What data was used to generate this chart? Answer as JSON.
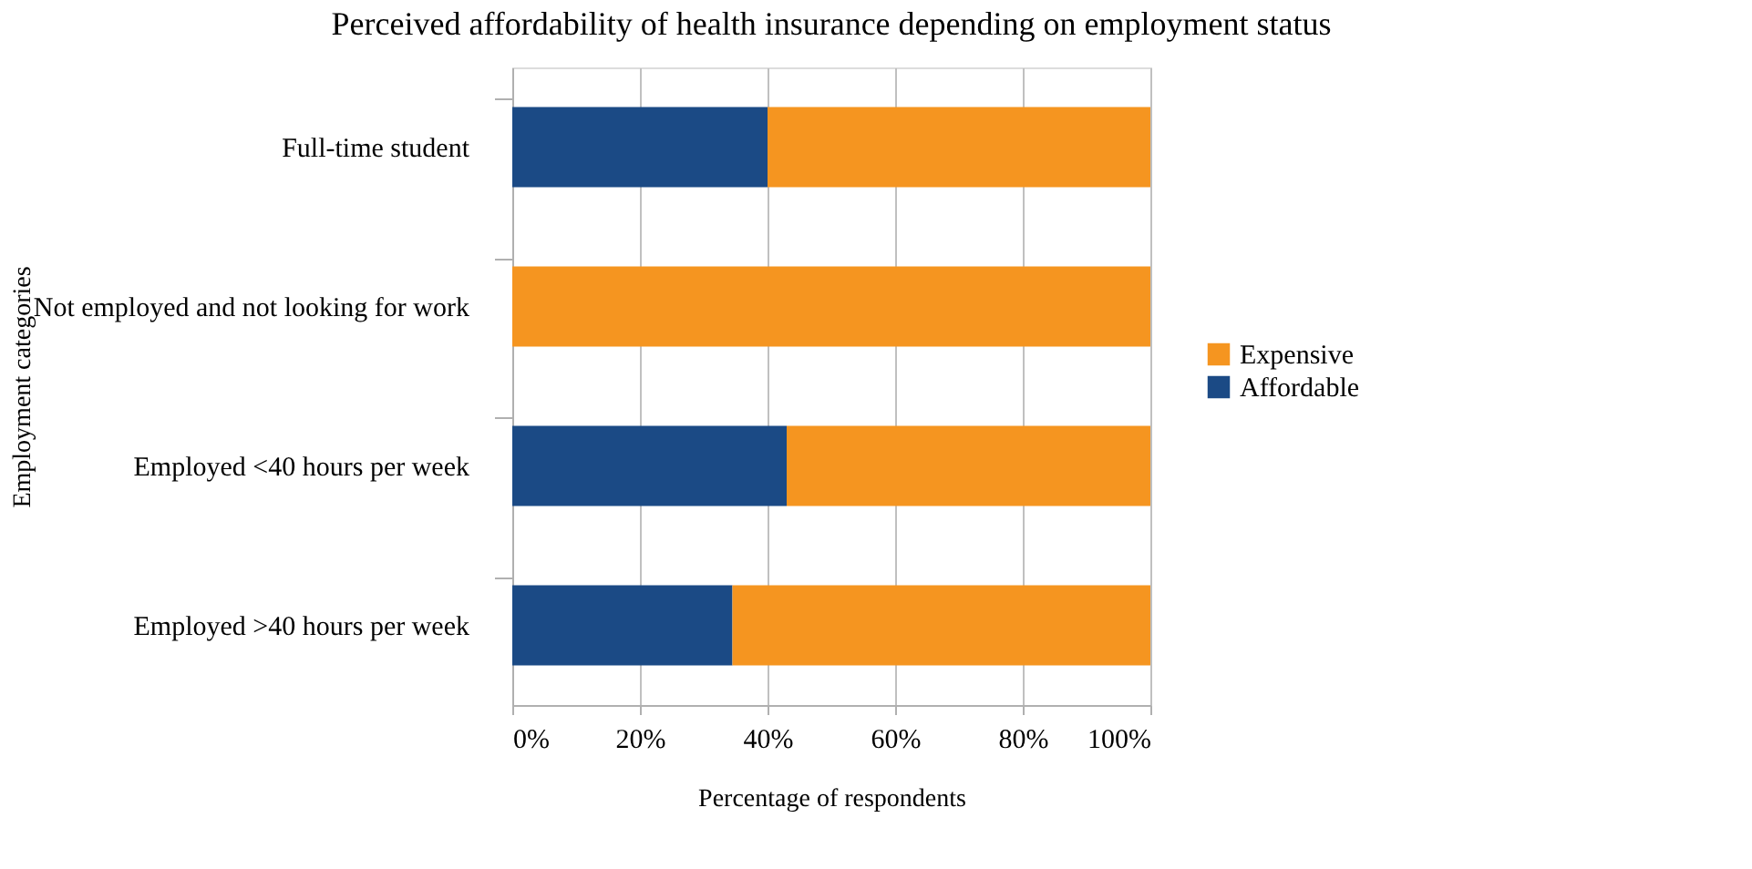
{
  "chart_data": {
    "type": "bar",
    "orientation": "horizontal",
    "stacked": true,
    "title": "Perceived affordability of health insurance depending on employment status",
    "xlabel": "Percentage of respondents",
    "ylabel": "Employment categories",
    "categories": [
      "Full-time student",
      "Not employed and not looking for work",
      "Employed <40 hours per week",
      "Employed >40 hours per week"
    ],
    "series": [
      {
        "name": "Affordable",
        "color": "#1b4a85",
        "values": [
          40,
          0,
          43,
          34.5
        ]
      },
      {
        "name": "Expensive",
        "color": "#f59520",
        "values": [
          60,
          100,
          57,
          65.5
        ]
      }
    ],
    "xlim": [
      0,
      100
    ],
    "xticks": [
      {
        "value": 0,
        "label": "0%"
      },
      {
        "value": 20,
        "label": "20%"
      },
      {
        "value": 40,
        "label": "40%"
      },
      {
        "value": 60,
        "label": "60%"
      },
      {
        "value": 80,
        "label": "80%"
      },
      {
        "value": 100,
        "label": "100%"
      }
    ],
    "grid": "x",
    "legend": "right"
  }
}
